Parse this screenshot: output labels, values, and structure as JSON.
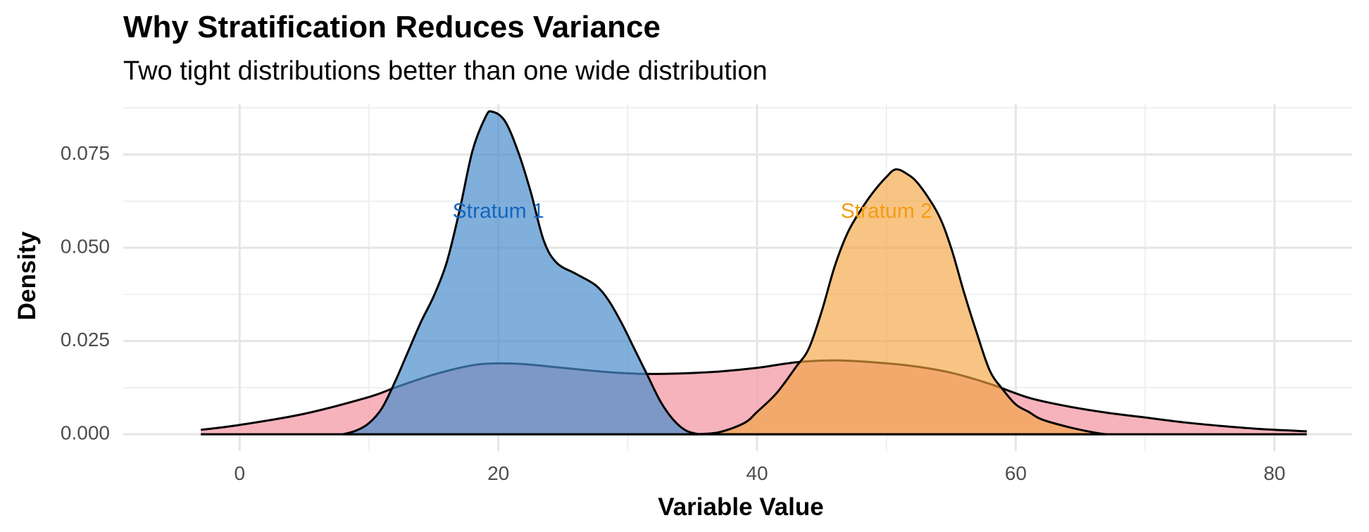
{
  "chart_data": {
    "type": "area",
    "title": "Why Stratification Reduces Variance",
    "subtitle": "Two tight distributions better than one wide distribution",
    "xlabel": "Variable Value",
    "ylabel": "Density",
    "xlim": [
      -9,
      86
    ],
    "ylim": [
      -0.0045,
      0.0885
    ],
    "x_ticks": [
      0,
      20,
      40,
      60,
      80
    ],
    "x_tick_labels": [
      "0",
      "20",
      "40",
      "60",
      "80"
    ],
    "y_ticks": [
      0.0,
      0.025,
      0.05,
      0.075
    ],
    "y_tick_labels": [
      "0.000",
      "0.025",
      "0.050",
      "0.075"
    ],
    "grid": true,
    "series": [
      {
        "color": "#f4a6b0",
        "opacity": 0.85,
        "points": [
          [
            -3,
            0.0012
          ],
          [
            0,
            0.0025
          ],
          [
            5,
            0.0055
          ],
          [
            10,
            0.01
          ],
          [
            12,
            0.0125
          ],
          [
            15,
            0.016
          ],
          [
            18,
            0.0185
          ],
          [
            20,
            0.019
          ],
          [
            22,
            0.0188
          ],
          [
            25,
            0.0178
          ],
          [
            28,
            0.0168
          ],
          [
            31,
            0.0162
          ],
          [
            34,
            0.0163
          ],
          [
            37,
            0.0168
          ],
          [
            40,
            0.0178
          ],
          [
            43,
            0.0193
          ],
          [
            46,
            0.0198
          ],
          [
            49,
            0.0193
          ],
          [
            52,
            0.0183
          ],
          [
            55,
            0.0165
          ],
          [
            58,
            0.0135
          ],
          [
            61,
            0.0098
          ],
          [
            64,
            0.0075
          ],
          [
            67,
            0.0058
          ],
          [
            70,
            0.0045
          ],
          [
            73,
            0.0032
          ],
          [
            76,
            0.0022
          ],
          [
            79,
            0.0014
          ],
          [
            82.5,
            0.0008
          ]
        ]
      },
      {
        "color": "#f2a541",
        "opacity": 0.65,
        "points": [
          [
            35,
            0.0
          ],
          [
            37,
            0.0005
          ],
          [
            39,
            0.003
          ],
          [
            40,
            0.006
          ],
          [
            41.5,
            0.011
          ],
          [
            43,
            0.018
          ],
          [
            44,
            0.023
          ],
          [
            45,
            0.033
          ],
          [
            46,
            0.045
          ],
          [
            47,
            0.054
          ],
          [
            48,
            0.06
          ],
          [
            49,
            0.065
          ],
          [
            50,
            0.069
          ],
          [
            50.7,
            0.071
          ],
          [
            51.5,
            0.07
          ],
          [
            52.5,
            0.067
          ],
          [
            54,
            0.059
          ],
          [
            55,
            0.05
          ],
          [
            56,
            0.038
          ],
          [
            57,
            0.027
          ],
          [
            58,
            0.017
          ],
          [
            59,
            0.012
          ],
          [
            60,
            0.008
          ],
          [
            61,
            0.006
          ],
          [
            62,
            0.004
          ],
          [
            64,
            0.002
          ],
          [
            66,
            0.0005
          ],
          [
            67,
            0.0
          ]
        ]
      },
      {
        "color": "#4a8dcc",
        "opacity": 0.7,
        "points": [
          [
            8,
            0.0
          ],
          [
            9,
            0.001
          ],
          [
            10,
            0.003
          ],
          [
            11,
            0.007
          ],
          [
            12,
            0.014
          ],
          [
            13,
            0.022
          ],
          [
            14,
            0.03
          ],
          [
            15,
            0.037
          ],
          [
            16,
            0.046
          ],
          [
            17,
            0.06
          ],
          [
            18,
            0.076
          ],
          [
            19,
            0.085
          ],
          [
            19.5,
            0.0865
          ],
          [
            20.5,
            0.084
          ],
          [
            21.5,
            0.076
          ],
          [
            22.5,
            0.065
          ],
          [
            23.5,
            0.052
          ],
          [
            24.5,
            0.046
          ],
          [
            26,
            0.043
          ],
          [
            27.5,
            0.04
          ],
          [
            28.5,
            0.036
          ],
          [
            29.5,
            0.03
          ],
          [
            30.5,
            0.023
          ],
          [
            31.5,
            0.016
          ],
          [
            32.5,
            0.009
          ],
          [
            33.5,
            0.004
          ],
          [
            34.5,
            0.001
          ],
          [
            35.5,
            0.0
          ]
        ]
      }
    ],
    "annotations": [
      {
        "text": "Stratum 1",
        "x": 20,
        "y": 0.0595,
        "color": "#1565c0"
      },
      {
        "text": "Stratum 2",
        "x": 50,
        "y": 0.0595,
        "color": "#f39c12"
      }
    ]
  }
}
